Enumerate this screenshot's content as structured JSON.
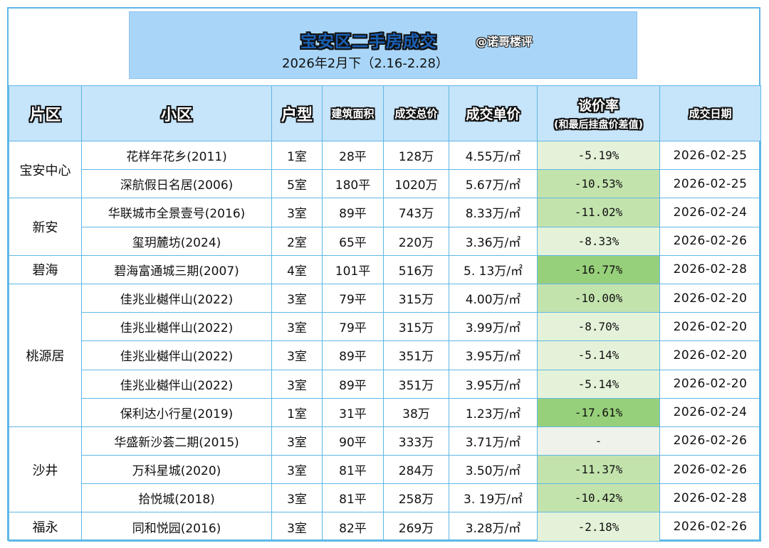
{
  "banner": {
    "title": "宝安区二手房成交",
    "handle": "@诺哥楼评",
    "subtitle": "2026年2月下（2.16-2.28）"
  },
  "headers": {
    "district": "片区",
    "community": "小区",
    "layout": "户型",
    "area": "建筑面积",
    "total": "成交总价",
    "unit_price": "成交单价",
    "rate": "谈价率",
    "rate_note": "(和最后挂盘价差值)",
    "date": "成交日期"
  },
  "colors": {
    "border": "#5fb7e6",
    "header_bg": "#c6e4fa",
    "banner_bg": "#a9d6f8",
    "rate_light": "#e4f2d9",
    "rate_mid": "#c3e3ad",
    "rate_strong": "#97d07a"
  },
  "rows": [
    {
      "community": "花样年花乡(2011)",
      "layout": "1室",
      "area": "28平",
      "total": "128万",
      "unit_price": "4.55万/㎡",
      "rate": "-5.19%",
      "date": "2026-02-25",
      "shade": "light"
    },
    {
      "community": "深航假日名居(2006)",
      "layout": "5室",
      "area": "180平",
      "total": "1020万",
      "unit_price": "5.67万/㎡",
      "rate": "-10.53%",
      "date": "2026-02-25",
      "shade": "mid"
    },
    {
      "community": "华联城市全景壹号(2016)",
      "layout": "3室",
      "area": "89平",
      "total": "743万",
      "unit_price": "8.33万/㎡",
      "rate": "-11.02%",
      "date": "2026-02-24",
      "shade": "mid"
    },
    {
      "community": "玺玥麓坊(2024)",
      "layout": "2室",
      "area": "65平",
      "total": "220万",
      "unit_price": "3.36万/㎡",
      "rate": "-8.33%",
      "date": "2026-02-26",
      "shade": "light"
    },
    {
      "community": "碧海富通城三期(2007)",
      "layout": "4室",
      "area": "101平",
      "total": "516万",
      "unit_price": "5. 13万/㎡",
      "rate": "-16.77%",
      "date": "2026-02-28",
      "shade": "strong"
    },
    {
      "community": "佳兆业樾伴山(2022)",
      "layout": "3室",
      "area": "79平",
      "total": "315万",
      "unit_price": "4.00万/㎡",
      "rate": "-10.00%",
      "date": "2026-02-20",
      "shade": "mid"
    },
    {
      "community": "佳兆业樾伴山(2022)",
      "layout": "3室",
      "area": "79平",
      "total": "315万",
      "unit_price": "3.99万/㎡",
      "rate": "-8.70%",
      "date": "2026-02-20",
      "shade": "light"
    },
    {
      "community": "佳兆业樾伴山(2022)",
      "layout": "3室",
      "area": "89平",
      "total": "351万",
      "unit_price": "3.95万/㎡",
      "rate": "-5.14%",
      "date": "2026-02-20",
      "shade": "light"
    },
    {
      "community": "佳兆业樾伴山(2022)",
      "layout": "3室",
      "area": "89平",
      "total": "351万",
      "unit_price": "3.95万/㎡",
      "rate": "-5.14%",
      "date": "2026-02-20",
      "shade": "light"
    },
    {
      "community": "保利达小行星(2019)",
      "layout": "1室",
      "area": "31平",
      "total": "38万",
      "unit_price": "1.23万/㎡",
      "rate": "-17.61%",
      "date": "2026-02-24",
      "shade": "strong"
    },
    {
      "community": "华盛新沙荟二期(2015)",
      "layout": "3室",
      "area": "90平",
      "total": "333万",
      "unit_price": "3.71万/㎡",
      "rate": "-",
      "date": "2026-02-26",
      "shade": "none"
    },
    {
      "community": "万科星城(2020)",
      "layout": "3室",
      "area": "81平",
      "total": "284万",
      "unit_price": "3.50万/㎡",
      "rate": "-11.37%",
      "date": "2026-02-26",
      "shade": "mid"
    },
    {
      "community": "拾悦城(2018)",
      "layout": "3室",
      "area": "81平",
      "total": "258万",
      "unit_price": "3. 19万/㎡",
      "rate": "-10.42%",
      "date": "2026-02-28",
      "shade": "mid"
    },
    {
      "community": "同和悦园(2016)",
      "layout": "3室",
      "area": "82平",
      "total": "269万",
      "unit_price": "3.28万/㎡",
      "rate": "-2.18%",
      "date": "2026-02-26",
      "shade": "light"
    }
  ],
  "districts": [
    {
      "name": "宝安中心",
      "start": 0,
      "span": 2
    },
    {
      "name": "新安",
      "start": 2,
      "span": 2
    },
    {
      "name": "碧海",
      "start": 4,
      "span": 1
    },
    {
      "name": "桃源居",
      "start": 5,
      "span": 5
    },
    {
      "name": "沙井",
      "start": 10,
      "span": 3
    },
    {
      "name": "福永",
      "start": 13,
      "span": 1
    }
  ]
}
